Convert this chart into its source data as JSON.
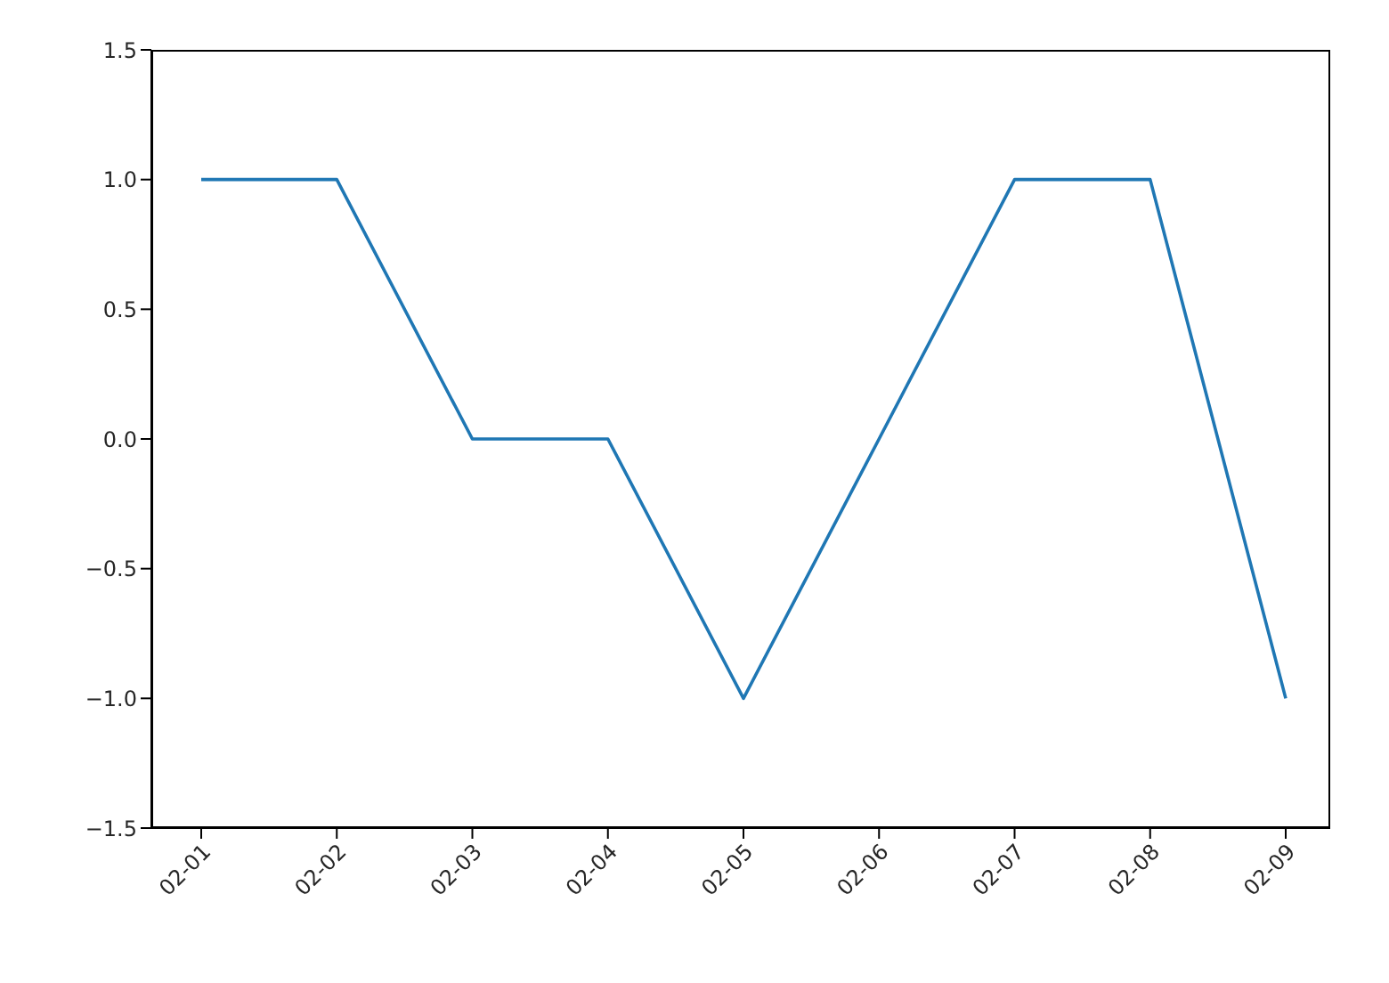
{
  "chart_data": {
    "type": "line",
    "categories": [
      "02-01",
      "02-02",
      "02-03",
      "02-04",
      "02-05",
      "02-06",
      "02-07",
      "02-08",
      "02-09"
    ],
    "series": [
      {
        "color": "#1f77b4",
        "values": [
          1,
          1,
          0,
          0,
          -1,
          0,
          1,
          1,
          -1
        ]
      }
    ],
    "ylim": [
      -1.5,
      1.5
    ],
    "yticks": [
      {
        "value": -1.5,
        "label": "−1.5"
      },
      {
        "value": -1,
        "label": "−1.0"
      },
      {
        "value": -0.5,
        "label": "−0.5"
      },
      {
        "value": 0,
        "label": "0.0"
      },
      {
        "value": 0.5,
        "label": "0.5"
      },
      {
        "value": 1,
        "label": "1.0"
      },
      {
        "value": 1.5,
        "label": "1.5"
      }
    ],
    "grid": false,
    "legend": false,
    "marker": "none",
    "line_style": "solid"
  }
}
